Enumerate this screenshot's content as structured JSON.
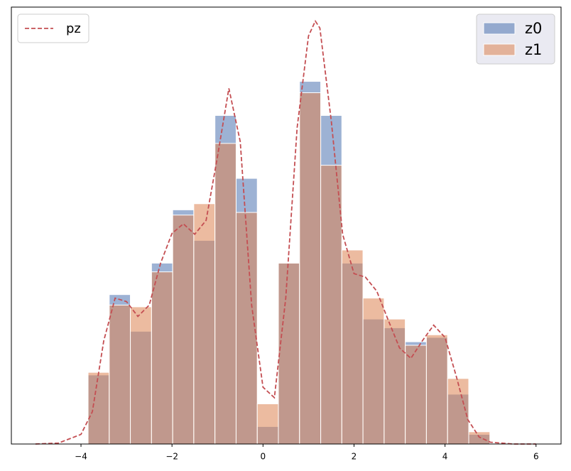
{
  "chart_data": {
    "type": "histogram",
    "bins": [
      -3.844,
      -3.379,
      -2.915,
      -2.45,
      -1.985,
      -1.521,
      -1.056,
      -0.591,
      -0.126,
      0.338,
      0.803,
      1.268,
      1.732,
      2.197,
      2.662,
      3.126,
      3.591,
      4.056,
      4.521,
      4.986
    ],
    "series": [
      {
        "name": "z0",
        "color": "#4c72b0",
        "values": [
          0.079,
          0.171,
          0.129,
          0.207,
          0.268,
          0.233,
          0.376,
          0.304,
          0.02,
          0.207,
          0.415,
          0.376,
          0.207,
          0.143,
          0.133,
          0.117,
          0.122,
          0.057,
          0.011
        ]
      },
      {
        "name": "z1",
        "color": "#dd8452",
        "values": [
          0.082,
          0.159,
          0.157,
          0.197,
          0.262,
          0.275,
          0.344,
          0.265,
          0.046,
          0.207,
          0.402,
          0.319,
          0.222,
          0.167,
          0.143,
          0.113,
          0.125,
          0.075,
          0.014
        ]
      }
    ],
    "legend": "upper right",
    "line": {
      "type": "line",
      "name": "pz",
      "color": "#c44e52",
      "dashed": true,
      "legend": "upper left",
      "x": [
        -5,
        -4.5,
        -4,
        -3.75,
        -3.5,
        -3.25,
        -3,
        -2.75,
        -2.5,
        -2.25,
        -2,
        -1.75,
        -1.5,
        -1.25,
        -1,
        -0.75,
        -0.5,
        -0.25,
        0,
        0.25,
        0.5,
        0.75,
        1,
        1.15,
        1.25,
        1.5,
        1.75,
        2,
        2.25,
        2.5,
        2.75,
        3,
        3.25,
        3.5,
        3.75,
        4,
        4.25,
        4.5,
        4.75,
        5,
        5.5,
        6
      ],
      "values": [
        0,
        0.001,
        0.011,
        0.037,
        0.118,
        0.167,
        0.163,
        0.146,
        0.159,
        0.207,
        0.241,
        0.252,
        0.24,
        0.256,
        0.329,
        0.407,
        0.346,
        0.159,
        0.065,
        0.053,
        0.167,
        0.362,
        0.467,
        0.484,
        0.476,
        0.37,
        0.24,
        0.195,
        0.191,
        0.175,
        0.142,
        0.11,
        0.098,
        0.118,
        0.136,
        0.122,
        0.077,
        0.028,
        0.008,
        0.002,
        0,
        0
      ]
    },
    "xlim": [
      -5.53,
      6.55
    ],
    "ylim": [
      0,
      0.5
    ],
    "xticks": [
      {
        "value": -4,
        "label": "−4"
      },
      {
        "value": -2,
        "label": "−2"
      },
      0,
      2,
      4,
      6
    ]
  }
}
